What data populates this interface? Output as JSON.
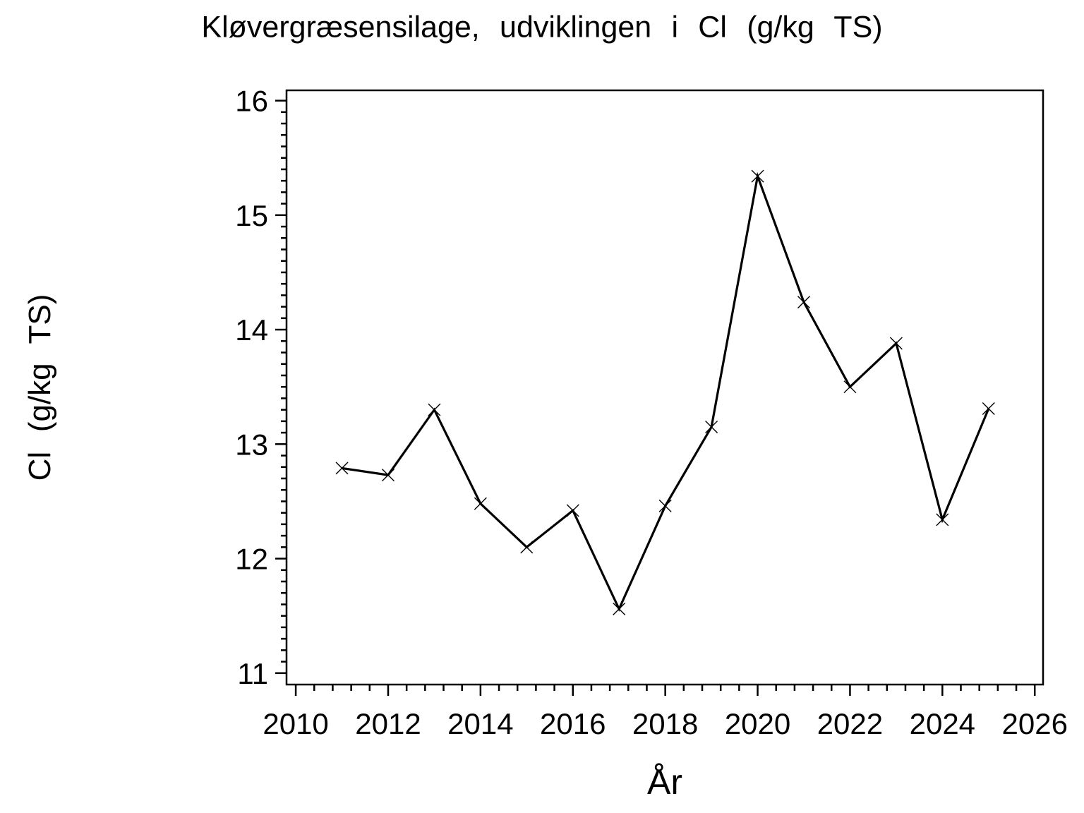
{
  "page": {
    "background_color": "#ffffff",
    "foreground_color": "#000000"
  },
  "chart_data": {
    "type": "line",
    "title": "Kløvergræsensilage, udviklingen i Cl (g/kg TS)",
    "xlabel": "År",
    "ylabel": "Cl (g/kg TS)",
    "x": [
      2011,
      2012,
      2013,
      2014,
      2015,
      2016,
      2017,
      2018,
      2019,
      2020,
      2021,
      2022,
      2023,
      2024,
      2025
    ],
    "values": [
      12.79,
      12.73,
      13.3,
      12.48,
      12.1,
      12.42,
      11.56,
      12.46,
      13.15,
      15.34,
      14.24,
      13.5,
      13.88,
      12.34,
      13.31
    ],
    "series": [
      {
        "name": "Cl (g/kg TS)",
        "values": [
          12.79,
          12.73,
          13.3,
          12.48,
          12.1,
          12.42,
          11.56,
          12.46,
          13.15,
          15.34,
          14.24,
          13.5,
          13.88,
          12.34,
          13.31
        ]
      }
    ],
    "marker": "x",
    "line_color": "#000000",
    "background_color": "#ffffff",
    "grid": false,
    "legend": "none",
    "xlim": [
      2009.8,
      2026.18
    ],
    "ylim": [
      10.9,
      16.09
    ],
    "x_ticks": {
      "min": 2010,
      "max": 2026,
      "major_step": 2,
      "minor_step": 0.4,
      "labels": [
        "2010",
        "2012",
        "2014",
        "2016",
        "2018",
        "2020",
        "2022",
        "2024",
        "2026"
      ]
    },
    "y_ticks": {
      "min": 11,
      "max": 16,
      "major_step": 1,
      "minor_step": 0.1,
      "labels": [
        "11",
        "12",
        "13",
        "14",
        "15",
        "16"
      ]
    }
  }
}
